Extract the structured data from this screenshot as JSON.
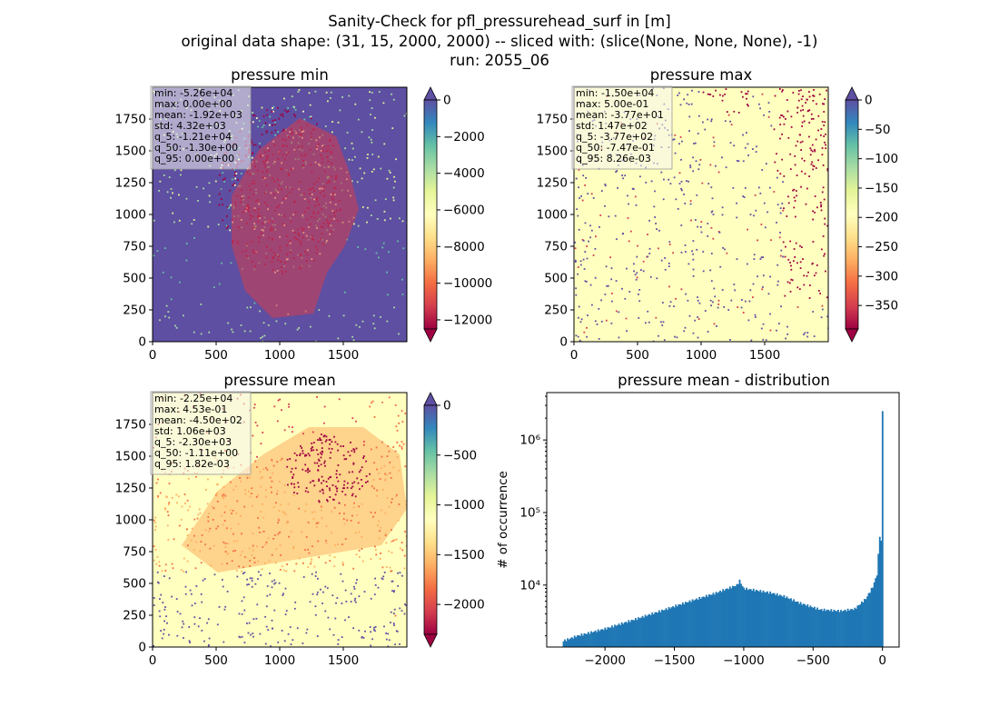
{
  "figure": {
    "title_lines": [
      "Sanity-Check for pfl_pressurehead_surf in [m]",
      "original data shape: (31, 15, 2000, 2000) -- sliced with: (slice(None, None, None), -1)",
      "run: 2055_06"
    ]
  },
  "colors": {
    "hist_bar": "#1f77b4",
    "stats_box_bg": "#f5f5f0",
    "spectral": [
      "#9e0142",
      "#d53e4f",
      "#f46d43",
      "#fdae61",
      "#fee08b",
      "#ffffbf",
      "#e6f598",
      "#abdda4",
      "#66c2a5",
      "#3288bd",
      "#5e4fa2"
    ]
  },
  "chart_data": [
    {
      "type": "heatmap",
      "title": "pressure min",
      "xlim": [
        0,
        2000
      ],
      "ylim": [
        0,
        2000
      ],
      "xticks": [
        "0",
        "500",
        "1000",
        "1500"
      ],
      "yticks": [
        "0",
        "250",
        "500",
        "750",
        "1000",
        "1250",
        "1500",
        "1750"
      ],
      "colorbar": {
        "min": -12500,
        "max": 0,
        "ticks": [
          "0",
          "−2000",
          "−4000",
          "−6000",
          "−8000",
          "−10000",
          "−12000"
        ],
        "tick_values": [
          0,
          -2000,
          -4000,
          -6000,
          -8000,
          -10000,
          -12000
        ],
        "extend": "both",
        "cmap": "Spectral"
      },
      "stats": [
        "min: -5.26e+04",
        "max: 0.00e+00",
        "mean: -1.92e+03",
        "std: 4.32e+03",
        "q_5: -1.21e+04",
        "q_50: -1.30e+00",
        "q_95: 0.00e+00"
      ]
    },
    {
      "type": "heatmap",
      "title": "pressure max",
      "xlim": [
        0,
        2000
      ],
      "ylim": [
        0,
        2000
      ],
      "xticks": [
        "0",
        "500",
        "1000",
        "1500"
      ],
      "yticks": [
        "0",
        "250",
        "500",
        "750",
        "1000",
        "1250",
        "1500",
        "1750"
      ],
      "colorbar": {
        "min": -390,
        "max": 0,
        "ticks": [
          "0",
          "−50",
          "−100",
          "−150",
          "−200",
          "−250",
          "−300",
          "−350"
        ],
        "tick_values": [
          0,
          -50,
          -100,
          -150,
          -200,
          -250,
          -300,
          -350
        ],
        "extend": "both",
        "cmap": "Spectral"
      },
      "stats": [
        "min: -1.50e+04",
        "max: 5.00e-01",
        "mean: -3.77e+01",
        "std: 1.47e+02",
        "q_5: -3.77e+02",
        "q_50: -7.47e-01",
        "q_95: 8.26e-03"
      ]
    },
    {
      "type": "heatmap",
      "title": "pressure mean",
      "xlim": [
        0,
        2000
      ],
      "ylim": [
        0,
        2000
      ],
      "xticks": [
        "0",
        "500",
        "1000",
        "1500"
      ],
      "yticks": [
        "0",
        "250",
        "500",
        "750",
        "1000",
        "1250",
        "1500",
        "1750"
      ],
      "colorbar": {
        "min": -2300,
        "max": 0,
        "ticks": [
          "0",
          "−500",
          "−1000",
          "−1500",
          "−2000"
        ],
        "tick_values": [
          0,
          -500,
          -1000,
          -1500,
          -2000
        ],
        "extend": "both",
        "cmap": "Spectral"
      },
      "stats": [
        "min: -2.25e+04",
        "max: 4.53e-01",
        "mean: -4.50e+02",
        "std: 1.06e+03",
        "q_5: -2.30e+03",
        "q_50: -1.11e+00",
        "q_95: 1.82e-03"
      ]
    },
    {
      "type": "bar",
      "title": "pressure mean - distribution",
      "ylabel": "# of occurrence",
      "yscale": "log",
      "xlim": [
        -2420,
        120
      ],
      "ylim": [
        1400,
        4500000
      ],
      "xticks": [
        -2000,
        -1500,
        -1000,
        -500,
        0
      ],
      "xtick_labels": [
        "−2000",
        "−1500",
        "−1000",
        "−500",
        "0"
      ],
      "yticks": [
        10000,
        100000,
        1000000
      ],
      "ytick_labels": [
        "10⁴",
        "10⁵",
        "10⁶"
      ],
      "bin_width": 10,
      "bins_profile": [
        {
          "x": -2300,
          "y": 1700
        },
        {
          "x": -2200,
          "y": 2000
        },
        {
          "x": -2000,
          "y": 2500
        },
        {
          "x": -1800,
          "y": 3300
        },
        {
          "x": -1600,
          "y": 4400
        },
        {
          "x": -1400,
          "y": 5900
        },
        {
          "x": -1200,
          "y": 7800
        },
        {
          "x": -1050,
          "y": 10000
        },
        {
          "x": -1030,
          "y": 11500
        },
        {
          "x": -1000,
          "y": 9000
        },
        {
          "x": -900,
          "y": 8400
        },
        {
          "x": -800,
          "y": 7800
        },
        {
          "x": -700,
          "y": 6900
        },
        {
          "x": -600,
          "y": 5700
        },
        {
          "x": -450,
          "y": 4600
        },
        {
          "x": -300,
          "y": 4400
        },
        {
          "x": -200,
          "y": 4700
        },
        {
          "x": -120,
          "y": 6500
        },
        {
          "x": -70,
          "y": 9500
        },
        {
          "x": -40,
          "y": 14000
        },
        {
          "x": -20,
          "y": 48000
        },
        {
          "x": -10,
          "y": 40000
        },
        {
          "x": 0,
          "y": 2500000
        }
      ]
    }
  ]
}
